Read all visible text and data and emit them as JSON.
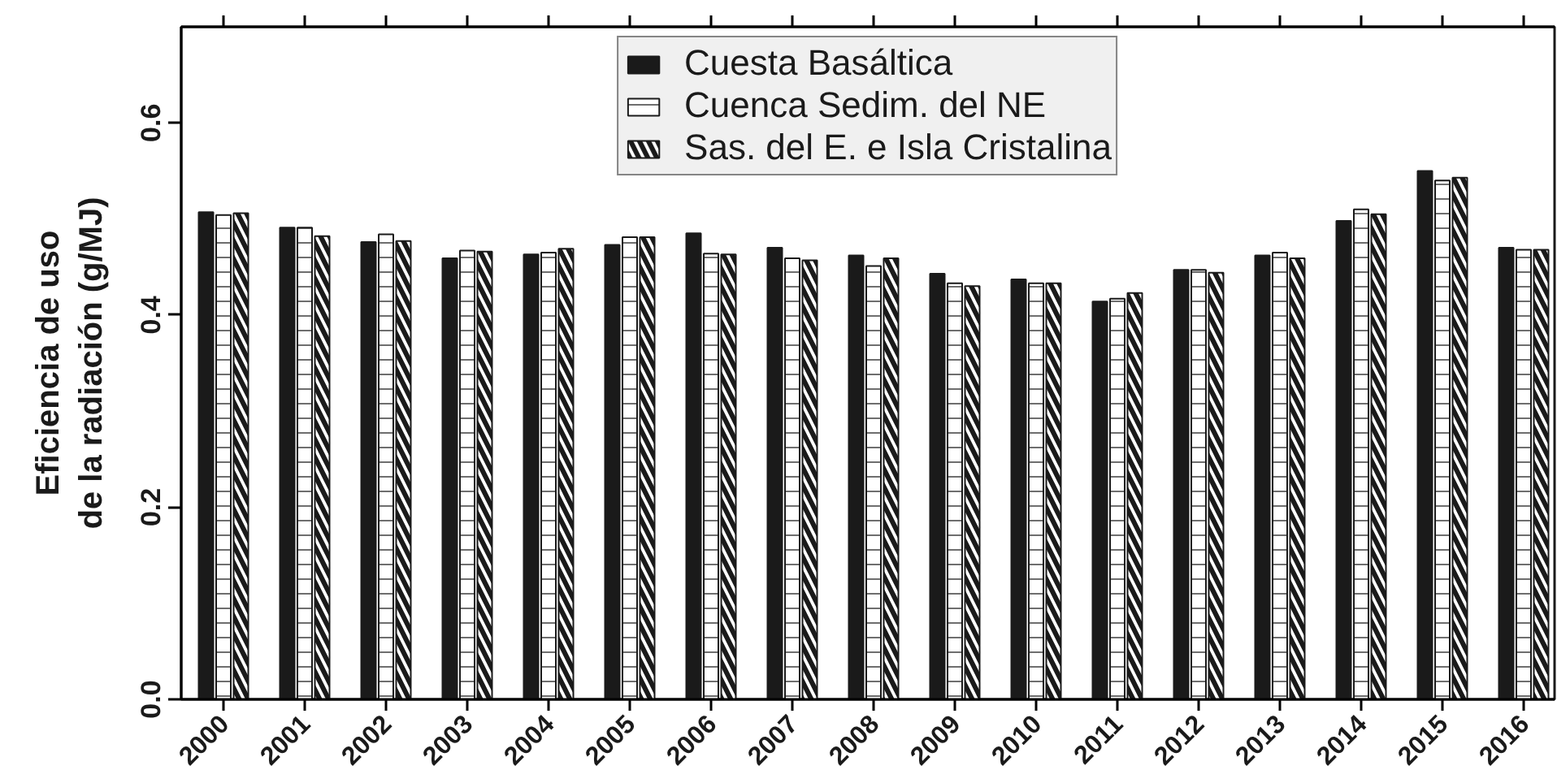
{
  "chart_data": {
    "type": "bar",
    "ylabel": "Eficiencia de uso\nde la radiación (g/MJ)",
    "categories": [
      "2000",
      "2001",
      "2002",
      "2003",
      "2004",
      "2005",
      "2006",
      "2007",
      "2008",
      "2009",
      "2010",
      "2011",
      "2012",
      "2013",
      "2014",
      "2015",
      "2016"
    ],
    "series": [
      {
        "name": "Cuesta Basáltica",
        "color": "#1a1a1a",
        "values": [
          0.507,
          0.491,
          0.476,
          0.459,
          0.463,
          0.473,
          0.485,
          0.47,
          0.462,
          0.443,
          0.437,
          0.414,
          0.447,
          0.462,
          0.498,
          0.55,
          0.47
        ]
      },
      {
        "name": "Cuenca Sedim. del NE",
        "color": "#ffffff",
        "values": [
          0.504,
          0.491,
          0.484,
          0.467,
          0.465,
          0.481,
          0.464,
          0.459,
          0.451,
          0.433,
          0.433,
          0.417,
          0.447,
          0.465,
          0.51,
          0.54,
          0.468
        ]
      },
      {
        "name": "Sas. del E. e Isla Cristalina",
        "color": "#ffffff",
        "values": [
          0.506,
          0.482,
          0.477,
          0.466,
          0.469,
          0.481,
          0.463,
          0.457,
          0.459,
          0.43,
          0.433,
          0.423,
          0.444,
          0.459,
          0.505,
          0.543,
          0.468
        ]
      }
    ],
    "ylim": [
      0,
      0.7
    ],
    "yticks": [
      {
        "value": 0,
        "label": "0.0"
      },
      0.2,
      0.4,
      0.6
    ],
    "legend": "top",
    "grid": false
  }
}
